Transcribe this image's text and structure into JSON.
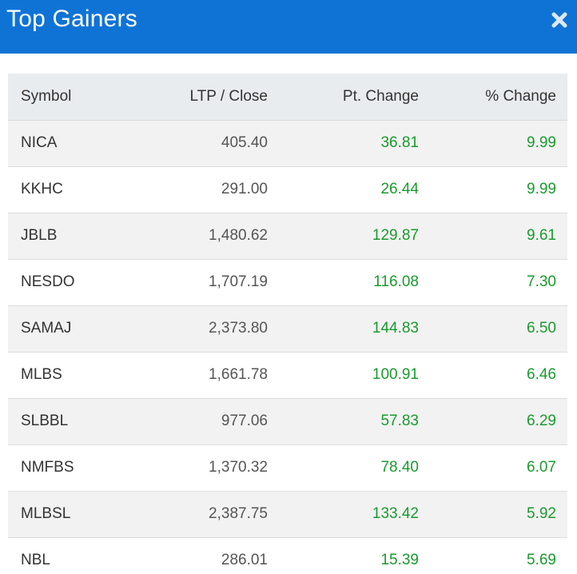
{
  "header": {
    "title": "Top Gainers",
    "close_icon": "close-icon",
    "background": "#0f73d6"
  },
  "table": {
    "columns": {
      "symbol": "Symbol",
      "ltp": "LTP / Close",
      "pt_change": "Pt. Change",
      "pct_change": "% Change"
    },
    "rows": [
      {
        "symbol": "NICA",
        "ltp": "405.40",
        "pt_change": "36.81",
        "pct_change": "9.99"
      },
      {
        "symbol": "KKHC",
        "ltp": "291.00",
        "pt_change": "26.44",
        "pct_change": "9.99"
      },
      {
        "symbol": "JBLB",
        "ltp": "1,480.62",
        "pt_change": "129.87",
        "pct_change": "9.61"
      },
      {
        "symbol": "NESDO",
        "ltp": "1,707.19",
        "pt_change": "116.08",
        "pct_change": "7.30"
      },
      {
        "symbol": "SAMAJ",
        "ltp": "2,373.80",
        "pt_change": "144.83",
        "pct_change": "6.50"
      },
      {
        "symbol": "MLBS",
        "ltp": "1,661.78",
        "pt_change": "100.91",
        "pct_change": "6.46"
      },
      {
        "symbol": "SLBBL",
        "ltp": "977.06",
        "pt_change": "57.83",
        "pct_change": "6.29"
      },
      {
        "symbol": "NMFBS",
        "ltp": "1,370.32",
        "pt_change": "78.40",
        "pct_change": "6.07"
      },
      {
        "symbol": "MLBSL",
        "ltp": "2,387.75",
        "pt_change": "133.42",
        "pct_change": "5.92"
      },
      {
        "symbol": "NBL",
        "ltp": "286.01",
        "pt_change": "15.39",
        "pct_change": "5.69"
      }
    ],
    "positive_color": "#1a9a2e"
  }
}
